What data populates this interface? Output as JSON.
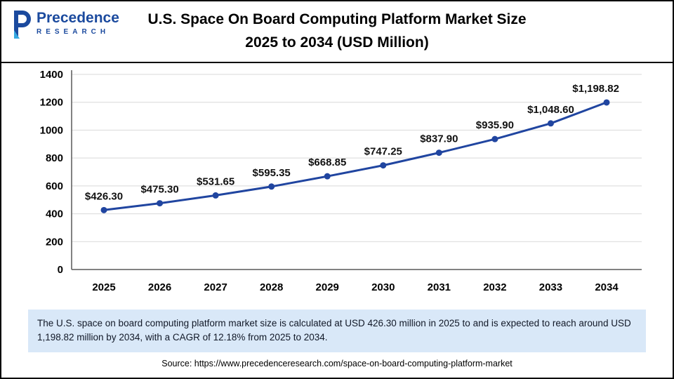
{
  "header": {
    "logo": {
      "name": "Precedence",
      "sub": "RESEARCH"
    },
    "title_line1": "U.S. Space On Board Computing Platform Market Size",
    "title_line2": "2025 to 2034 (USD Million)"
  },
  "chart_data": {
    "type": "line",
    "title": "U.S. Space On Board Computing Platform Market Size 2025 to 2034 (USD Million)",
    "categories": [
      "2025",
      "2026",
      "2027",
      "2028",
      "2029",
      "2030",
      "2031",
      "2032",
      "2033",
      "2034"
    ],
    "values": [
      426.3,
      475.3,
      531.65,
      595.35,
      668.85,
      747.25,
      837.9,
      935.9,
      1048.6,
      1198.82
    ],
    "labels": [
      "$426.30",
      "$475.30",
      "$531.65",
      "$595.35",
      "$668.85",
      "$747.25",
      "$837.90",
      "$935.90",
      "$1,048.60",
      "$1,198.82"
    ],
    "xlabel": "",
    "ylabel": "",
    "ylim": [
      0,
      1400
    ],
    "ytick_step": 200,
    "grid": true,
    "legend_position": "none",
    "line_color": "#2045a0",
    "grid_color": "#d9d9d9"
  },
  "footer": {
    "summary": "The U.S. space on board computing platform market size is calculated at USD 426.30 million in 2025 to and is expected to reach around USD 1,198.82 million by 2034, with a CAGR of 12.18% from 2025 to 2034.",
    "source": "Source: https://www.precedenceresearch.com/space-on-board-computing-platform-market"
  }
}
